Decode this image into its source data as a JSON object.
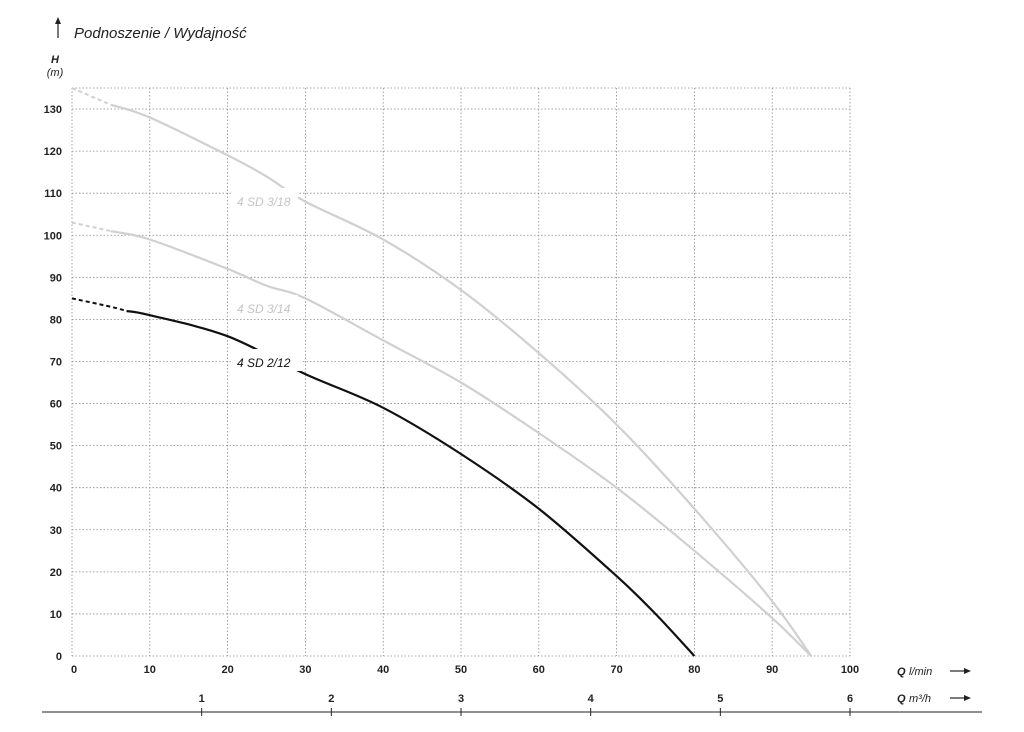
{
  "chart_data": {
    "type": "line",
    "title": "Podnoszenie / Wydajność",
    "ylabel": "H",
    "yunit": "(m)",
    "xlabel_primary": "Q l/min",
    "xlabel_primary_q": "Q",
    "xlabel_primary_unit": "l/min",
    "xlabel_secondary": "Q m³/h",
    "xlabel_secondary_q": "Q",
    "xlabel_secondary_unit": "m³/h",
    "xlim": [
      0,
      100
    ],
    "ylim": [
      0,
      135
    ],
    "xticks": [
      0,
      10,
      20,
      30,
      40,
      50,
      60,
      70,
      80,
      90,
      100
    ],
    "yticks": [
      0,
      10,
      20,
      30,
      40,
      50,
      60,
      70,
      80,
      90,
      100,
      110,
      120,
      130
    ],
    "secondary_ticks": [
      1,
      2,
      3,
      4,
      5,
      6
    ],
    "grid": true,
    "series": [
      {
        "name": "4 SD 3/18",
        "color": "#d0d0d0",
        "dashed_until_x": 5,
        "x": [
          0,
          5,
          10,
          20,
          25,
          30,
          40,
          50,
          60,
          70,
          80,
          90,
          95
        ],
        "y": [
          135,
          131,
          128,
          119,
          114,
          108,
          99,
          87,
          72,
          55,
          35,
          13,
          0
        ]
      },
      {
        "name": "4 SD 3/14",
        "color": "#d0d0d0",
        "dashed_until_x": 5,
        "x": [
          0,
          5,
          10,
          20,
          25,
          30,
          40,
          50,
          60,
          70,
          80,
          90,
          95
        ],
        "y": [
          103,
          101,
          99,
          92,
          88,
          85,
          75,
          65,
          53,
          40,
          25,
          9,
          0
        ]
      },
      {
        "name": "4 SD 2/12",
        "color": "#111111",
        "dashed_until_x": 7,
        "x": [
          0,
          5,
          7,
          10,
          20,
          30,
          40,
          50,
          60,
          70,
          75,
          80
        ],
        "y": [
          85,
          83,
          82,
          81,
          76,
          67,
          59,
          48,
          35,
          19,
          10,
          0
        ]
      }
    ]
  }
}
